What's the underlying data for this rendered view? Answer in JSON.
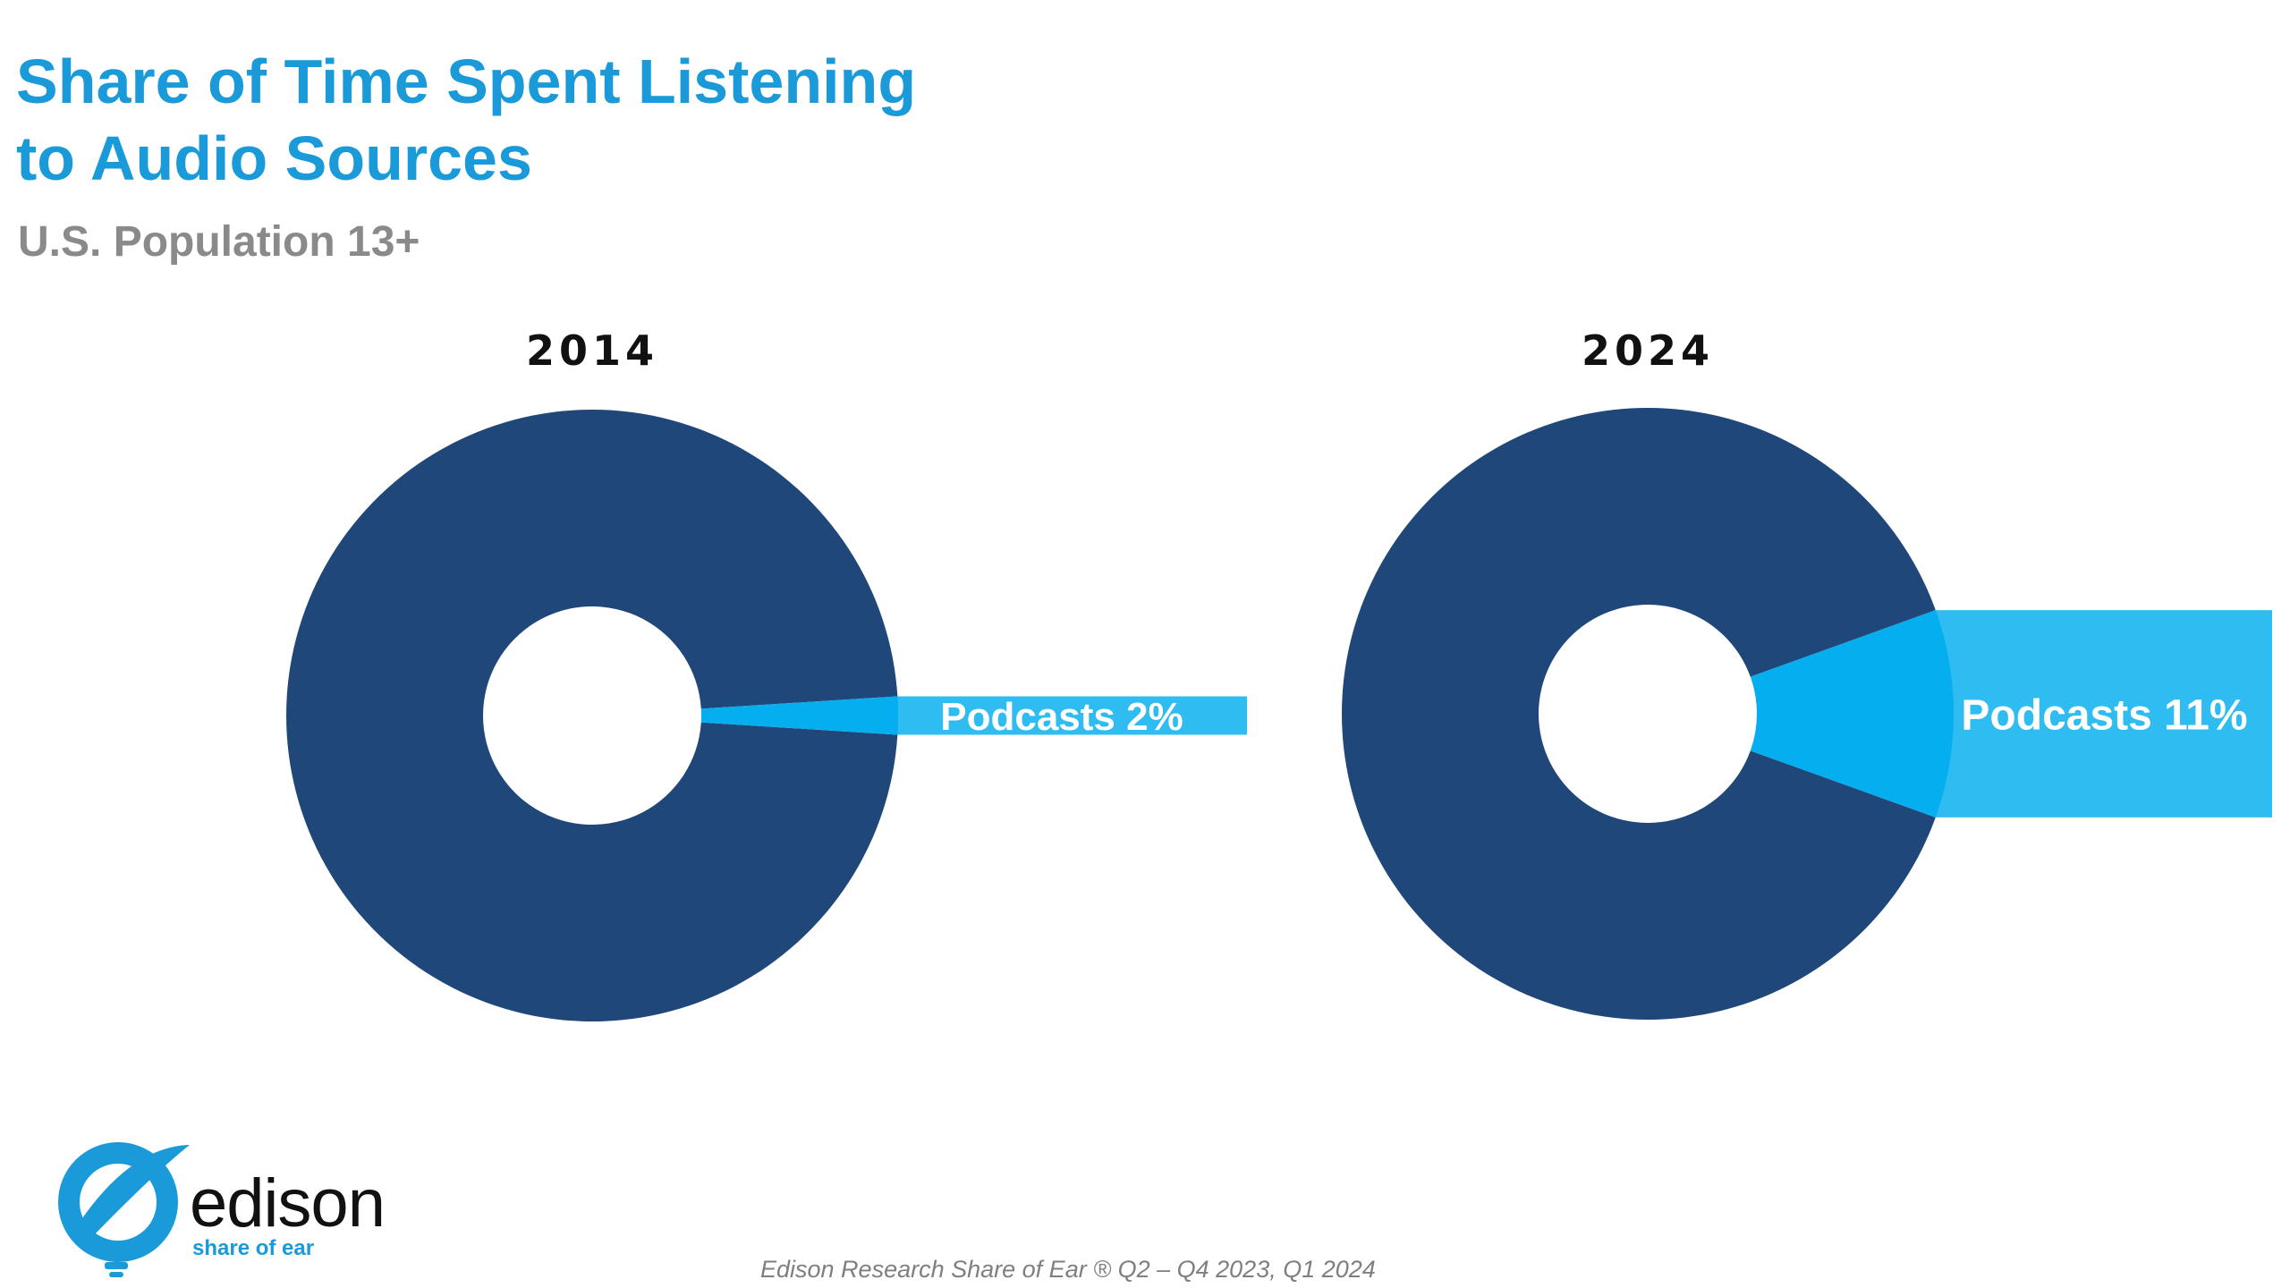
{
  "title_lines": [
    "Share of Time Spent Listening",
    "to Audio Sources"
  ],
  "subtitle": "U.S. Population 13+",
  "chart_data": [
    {
      "type": "pie",
      "style": "donut",
      "title": "2014",
      "slices": [
        {
          "label": "Podcasts",
          "value": 2,
          "color": "#05aeef",
          "callout": "Podcasts 2%"
        },
        {
          "label": "",
          "value": 98,
          "color": "#20477a"
        }
      ]
    },
    {
      "type": "pie",
      "style": "donut",
      "title": "2024",
      "slices": [
        {
          "label": "Podcasts",
          "value": 11,
          "color": "#05aeef",
          "callout": "Podcasts 11%"
        },
        {
          "label": "",
          "value": 89,
          "color": "#20477a"
        }
      ]
    }
  ],
  "colors": {
    "title": "#1a9ad8",
    "subtitle": "#8a8a8a",
    "donut_main": "#20477a",
    "podcast_slice": "#05aeef",
    "callout_box": "#2fbcf0"
  },
  "logo": {
    "wordmark": "edison",
    "tagline": "share of ear"
  },
  "footer": "Edison Research Share of Ear ®  Q2 – Q4 2023, Q1 2024"
}
